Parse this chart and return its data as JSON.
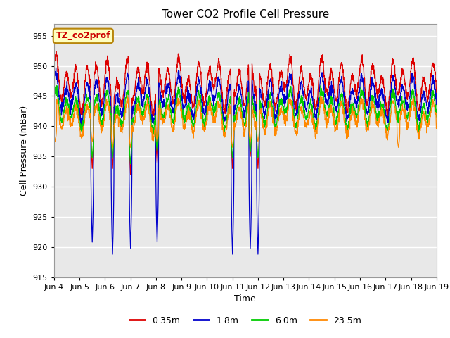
{
  "title": "Tower CO2 Profile Cell Pressure",
  "xlabel": "Time",
  "ylabel": "Cell Pressure (mBar)",
  "ylim": [
    915,
    957
  ],
  "yticks": [
    915,
    920,
    925,
    930,
    935,
    940,
    945,
    950,
    955
  ],
  "label_text": "TZ_co2prof",
  "label_box_color": "#ffffc0",
  "label_box_edge": "#b8860b",
  "label_text_color": "#cc0000",
  "bg_color": "#e8e8e8",
  "series": [
    {
      "label": "0.35m",
      "color": "#dd0000",
      "base": 947.0,
      "amp": 1.8
    },
    {
      "label": "1.8m",
      "color": "#0000cc",
      "base": 944.8,
      "amp": 1.5
    },
    {
      "label": "6.0m",
      "color": "#00cc00",
      "base": 942.8,
      "amp": 1.3
    },
    {
      "label": "23.5m",
      "color": "#ff8800",
      "base": 941.5,
      "amp": 1.2
    }
  ],
  "grid_color": "#ffffff",
  "tick_label_fontsize": 8,
  "axis_label_fontsize": 9,
  "title_fontsize": 11,
  "legend_fontsize": 9,
  "x_tick_labels": [
    "Jun 4",
    "Jun 5",
    "Jun 6",
    "Jun 7",
    "Jun 8",
    "Jun 9",
    "Jun 10",
    "Jun 11",
    "Jun 12",
    "Jun 13",
    "Jun 14",
    "Jun 15",
    "Jun 16",
    "Jun 17",
    "Jun 18",
    "Jun 19"
  ]
}
